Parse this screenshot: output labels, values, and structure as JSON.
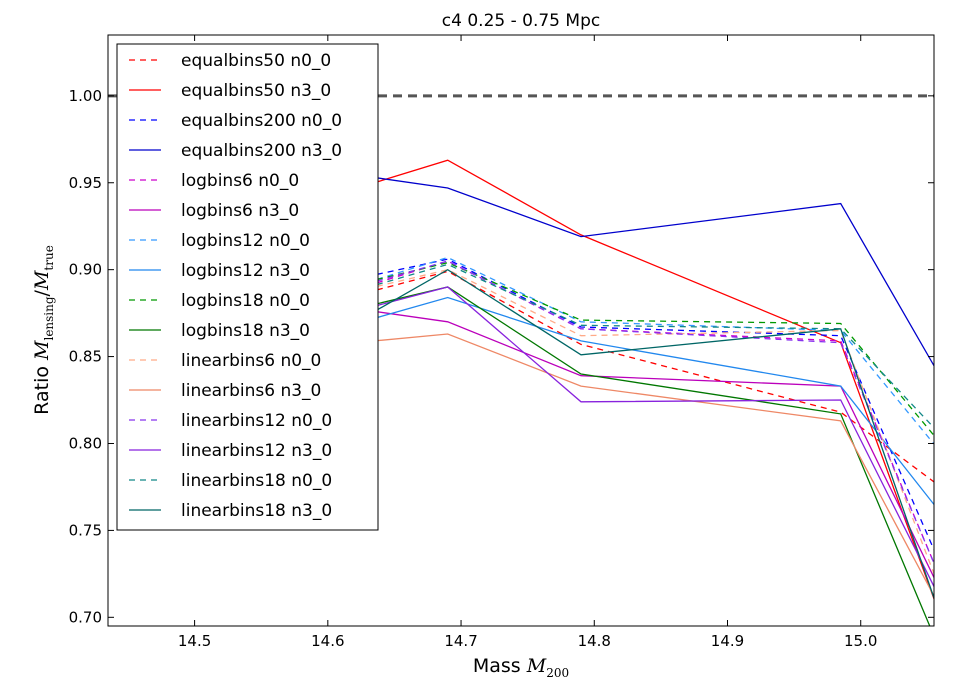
{
  "chart_data": {
    "type": "line",
    "title": "c4 0.25 - 0.75 Mpc",
    "xlabel": {
      "prefix": "Mass ",
      "main": "M",
      "sub": "200"
    },
    "ylabel": {
      "prefix": "Ratio ",
      "num_main": "M",
      "num_sub": "lensing",
      "slash": "/",
      "den_main": "M",
      "den_sub": "true"
    },
    "xlim": [
      14.435,
      15.055
    ],
    "ylim": [
      0.695,
      1.035
    ],
    "x_ticks": [
      "14.5",
      "14.6",
      "14.7",
      "14.8",
      "14.9",
      "15.0"
    ],
    "x_tick_values": [
      14.5,
      14.6,
      14.7,
      14.8,
      14.9,
      15.0
    ],
    "y_ticks": [
      "0.70",
      "0.75",
      "0.80",
      "0.85",
      "0.90",
      "0.95",
      "1.00"
    ],
    "y_tick_values": [
      0.7,
      0.75,
      0.8,
      0.85,
      0.9,
      0.95,
      1.0
    ],
    "grid": false,
    "legend_position": "upper-left",
    "reference_line": {
      "y": 1.0,
      "color": "#555555",
      "style": "dashed"
    },
    "x": [
      14.48,
      14.635,
      14.69,
      14.79,
      14.985,
      15.06
    ],
    "series": [
      {
        "name": "equalbins50 n0_0",
        "color": "#ff0000",
        "style": "dashed",
        "values": [
          0.89,
          0.888,
          0.899,
          0.857,
          0.818,
          0.775
        ]
      },
      {
        "name": "equalbins50 n3_0",
        "color": "#ff0000",
        "style": "solid",
        "values": [
          0.948,
          0.95,
          0.963,
          0.92,
          0.858,
          0.7
        ]
      },
      {
        "name": "equalbins200 n0_0",
        "color": "#0000ff",
        "style": "dashed",
        "values": [
          0.9,
          0.897,
          0.906,
          0.867,
          0.862,
          0.73
        ]
      },
      {
        "name": "equalbins200 n3_0",
        "color": "#0000cc",
        "style": "solid",
        "values": [
          0.954,
          0.953,
          0.947,
          0.919,
          0.938,
          0.838
        ]
      },
      {
        "name": "logbins6 n0_0",
        "color": "#cc00cc",
        "style": "dashed",
        "values": [
          0.895,
          0.892,
          0.905,
          0.866,
          0.859,
          0.722
        ]
      },
      {
        "name": "logbins6 n3_0",
        "color": "#bb00bb",
        "style": "solid",
        "values": [
          0.88,
          0.876,
          0.87,
          0.839,
          0.833,
          0.715
        ]
      },
      {
        "name": "logbins12 n0_0",
        "color": "#3399ff",
        "style": "dashed",
        "values": [
          0.897,
          0.894,
          0.907,
          0.87,
          0.865,
          0.795
        ]
      },
      {
        "name": "logbins12 n3_0",
        "color": "#2288ee",
        "style": "solid",
        "values": [
          0.876,
          0.872,
          0.884,
          0.859,
          0.833,
          0.76
        ]
      },
      {
        "name": "logbins18 n0_0",
        "color": "#009900",
        "style": "dashed",
        "values": [
          0.896,
          0.894,
          0.904,
          0.871,
          0.869,
          0.8
        ]
      },
      {
        "name": "logbins18 n3_0",
        "color": "#007700",
        "style": "solid",
        "values": [
          0.882,
          0.88,
          0.89,
          0.84,
          0.817,
          0.68
        ]
      },
      {
        "name": "linearbins6 n0_0",
        "color": "#ffaa88",
        "style": "dashed",
        "values": [
          0.892,
          0.89,
          0.9,
          0.862,
          0.865,
          0.715
        ]
      },
      {
        "name": "linearbins6 n3_0",
        "color": "#ee8866",
        "style": "solid",
        "values": [
          0.862,
          0.859,
          0.863,
          0.833,
          0.813,
          0.705
        ]
      },
      {
        "name": "linearbins12 n0_0",
        "color": "#8833ee",
        "style": "dashed",
        "values": [
          0.895,
          0.893,
          0.905,
          0.866,
          0.858,
          0.722
        ]
      },
      {
        "name": "linearbins12 n3_0",
        "color": "#8822dd",
        "style": "solid",
        "values": [
          0.88,
          0.879,
          0.89,
          0.824,
          0.825,
          0.71
        ]
      },
      {
        "name": "linearbins18 n0_0",
        "color": "#118888",
        "style": "dashed",
        "values": [
          0.893,
          0.891,
          0.903,
          0.868,
          0.866,
          0.805
        ]
      },
      {
        "name": "linearbins18 n3_0",
        "color": "#006666",
        "style": "solid",
        "values": [
          0.878,
          0.876,
          0.9,
          0.851,
          0.866,
          0.7
        ]
      }
    ]
  }
}
